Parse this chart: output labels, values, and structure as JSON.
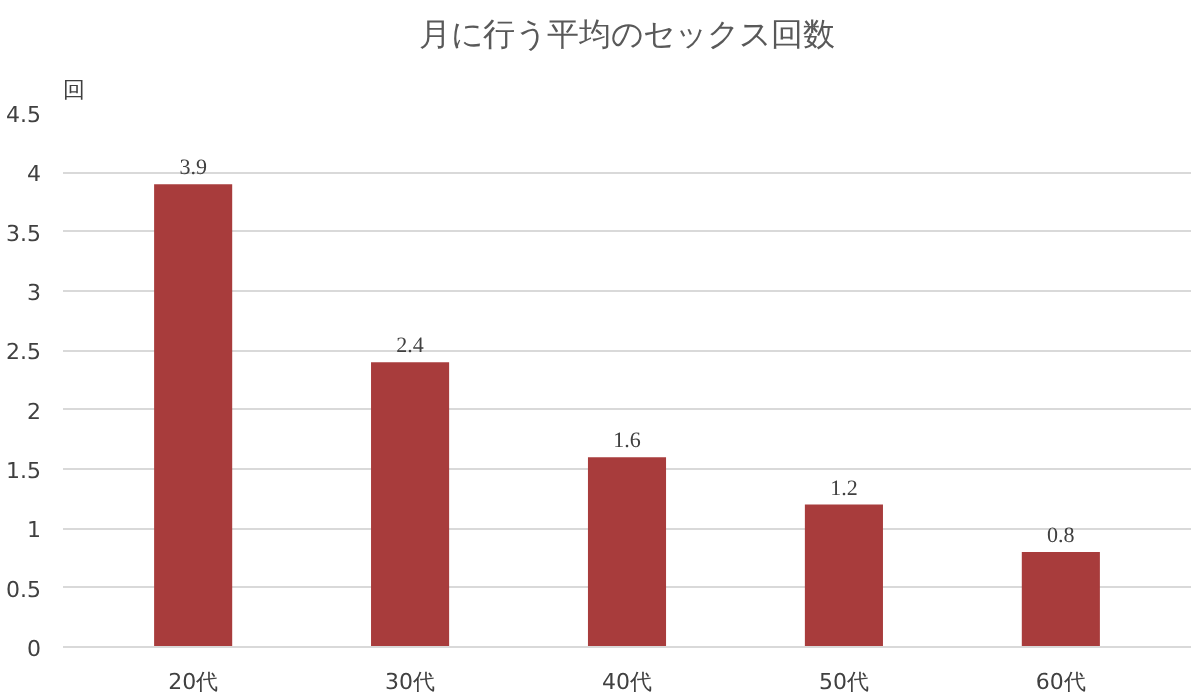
{
  "chart_data": {
    "type": "bar",
    "title": "月に行う平均のセックス回数",
    "ylabel": "回",
    "categories": [
      "20代",
      "30代",
      "40代",
      "50代",
      "60代"
    ],
    "values": [
      3.9,
      2.4,
      1.6,
      1.2,
      0.8
    ],
    "color": "#a83c3c",
    "ylim": [
      0,
      4.5
    ],
    "yticks": [
      0,
      0.5,
      1,
      1.5,
      2,
      2.5,
      3,
      3.5,
      4,
      4.5
    ],
    "grid": "y",
    "data_labels": true
  }
}
